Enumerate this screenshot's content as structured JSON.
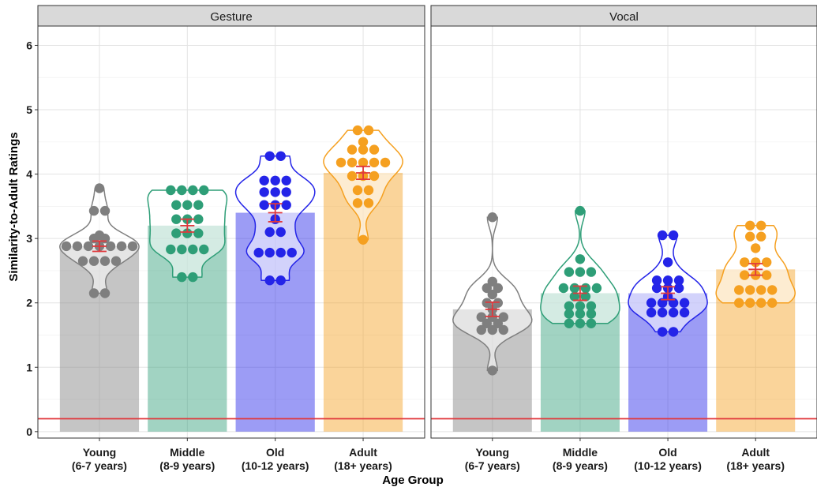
{
  "chart_data": {
    "type": "bar",
    "title": "",
    "xlabel": "Age Group",
    "ylabel": "Similarity-to-Adult Ratings",
    "ylim": [
      -0.1,
      6.3
    ],
    "yticks": [
      "0",
      "1",
      "2",
      "3",
      "4",
      "5",
      "6"
    ],
    "ytick_values": [
      0,
      1,
      2,
      3,
      4,
      5,
      6
    ],
    "reference_line": {
      "y": 0.2,
      "color": "#e0383c"
    },
    "grid": true,
    "categories": [
      {
        "line1": "Young",
        "line2": "(6-7 years)"
      },
      {
        "line1": "Middle",
        "line2": "(8-9 years)"
      },
      {
        "line1": "Old",
        "line2": "(10-12 years)"
      },
      {
        "line1": "Adult",
        "line2": "(18+ years)"
      }
    ],
    "colors": {
      "Young": "#7f7f7f",
      "Middle": "#2e9e77",
      "Old": "#2424e8",
      "Adult": "#f5a020",
      "errorbar": "#e0383c"
    },
    "panels": [
      {
        "title": "Gesture",
        "groups": [
          {
            "mean": 2.88,
            "se": 0.08,
            "points": [
              3.78,
              3.43,
              3.43,
              3.05,
              3.0,
              3.0,
              2.88,
              2.88,
              2.88,
              2.88,
              2.88,
              2.88,
              2.88,
              2.65,
              2.65,
              2.65,
              2.65,
              2.15,
              2.15
            ]
          },
          {
            "mean": 3.2,
            "se": 0.1,
            "points": [
              3.75,
              3.75,
              3.75,
              3.75,
              3.52,
              3.52,
              3.52,
              3.3,
              3.3,
              3.3,
              3.08,
              3.08,
              3.08,
              2.83,
              2.83,
              2.83,
              2.83,
              2.4,
              2.4
            ]
          },
          {
            "mean": 3.4,
            "se": 0.14,
            "points": [
              4.28,
              4.28,
              3.9,
              3.9,
              3.9,
              3.72,
              3.72,
              3.72,
              3.52,
              3.52,
              3.52,
              3.3,
              3.1,
              3.1,
              2.78,
              2.78,
              2.78,
              2.78,
              2.35,
              2.35
            ]
          },
          {
            "mean": 4.02,
            "se": 0.1,
            "points": [
              4.68,
              4.68,
              4.5,
              4.38,
              4.38,
              4.38,
              4.18,
              4.18,
              4.18,
              4.18,
              4.18,
              3.97,
              3.97,
              3.97,
              3.75,
              3.75,
              3.55,
              3.55,
              2.98
            ]
          }
        ]
      },
      {
        "title": "Vocal",
        "groups": [
          {
            "mean": 1.9,
            "se": 0.11,
            "points": [
              3.33,
              2.33,
              2.23,
              2.23,
              2.13,
              2.0,
              2.0,
              1.9,
              1.78,
              1.78,
              1.78,
              1.68,
              1.68,
              1.58,
              1.58,
              1.58,
              0.95
            ]
          },
          {
            "mean": 2.15,
            "se": 0.11,
            "points": [
              3.43,
              2.68,
              2.48,
              2.48,
              2.48,
              2.23,
              2.23,
              2.23,
              2.23,
              2.1,
              2.1,
              1.95,
              1.95,
              1.95,
              1.83,
              1.83,
              1.83,
              1.68,
              1.68,
              1.68
            ]
          },
          {
            "mean": 2.15,
            "se": 0.1,
            "points": [
              3.05,
              3.05,
              2.63,
              2.35,
              2.35,
              2.35,
              2.23,
              2.23,
              2.23,
              2.1,
              2.0,
              2.0,
              2.0,
              2.0,
              1.85,
              1.85,
              1.85,
              1.85,
              1.55,
              1.55
            ]
          },
          {
            "mean": 2.52,
            "se": 0.09,
            "points": [
              3.2,
              3.2,
              3.03,
              3.03,
              2.85,
              2.63,
              2.63,
              2.63,
              2.43,
              2.43,
              2.43,
              2.2,
              2.2,
              2.2,
              2.2,
              2.0,
              2.0,
              2.0,
              2.0
            ]
          }
        ]
      }
    ]
  }
}
